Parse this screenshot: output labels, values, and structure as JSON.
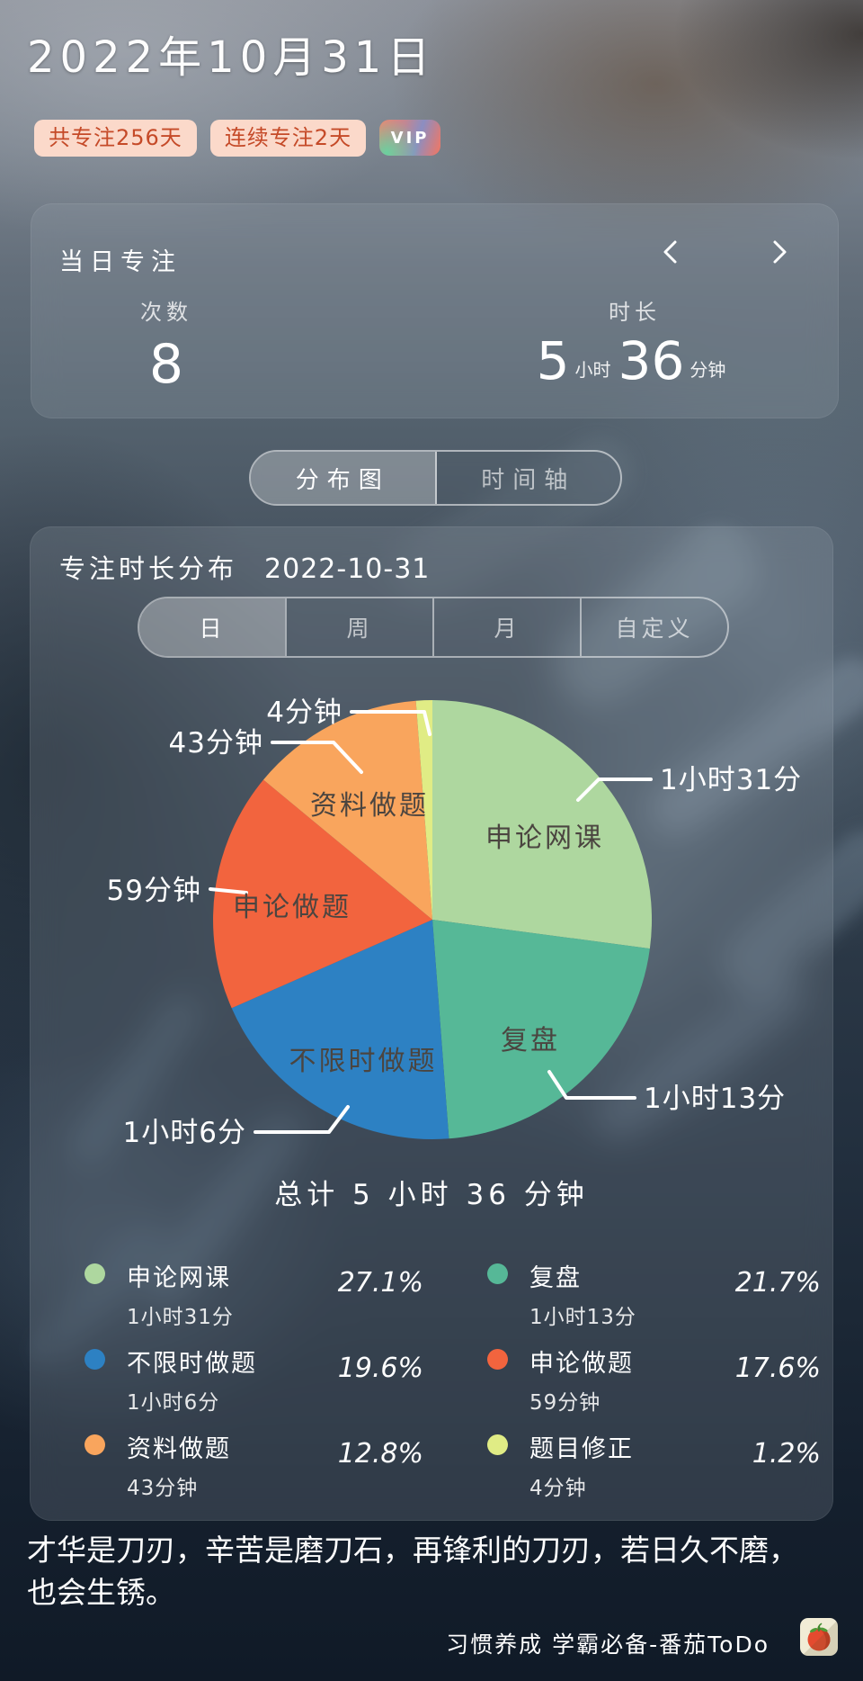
{
  "header": {
    "date_title": "2022年10月31日",
    "badges": [
      {
        "label": "共专注256天"
      },
      {
        "label": "连续专注2天"
      }
    ],
    "vip_label": "VIP"
  },
  "daily_card": {
    "title": "当日专注",
    "count_label": "次数",
    "count_value": "8",
    "duration_label": "时长",
    "duration_hours": "5",
    "hours_unit": "小时",
    "duration_minutes": "36",
    "minutes_unit": "分钟"
  },
  "view_tabs": [
    {
      "label": "分布图",
      "active": true
    },
    {
      "label": "时间轴",
      "active": false
    }
  ],
  "chart_card": {
    "title": "专注时长分布",
    "date": "2022-10-31",
    "range_tabs": [
      {
        "label": "日",
        "active": true
      },
      {
        "label": "周",
        "active": false
      },
      {
        "label": "月",
        "active": false
      },
      {
        "label": "自定义",
        "active": false
      }
    ],
    "total_label": "总计 5 小时 36 分钟"
  },
  "chart_data": {
    "type": "pie",
    "title": "专注时长分布",
    "subtitle": "2022-10-31",
    "start_angle_deg": 0,
    "direction": "clockwise",
    "total_minutes": 336,
    "total_label": "总计 5 小时 36 分钟",
    "legend_position": "bottom",
    "series": [
      {
        "name": "申论网课",
        "duration": "1小时31分",
        "minutes": 91,
        "percent": 27.1,
        "color": "#aed79f"
      },
      {
        "name": "复盘",
        "duration": "1小时13分",
        "minutes": 73,
        "percent": 21.7,
        "color": "#56b897"
      },
      {
        "name": "不限时做题",
        "duration": "1小时6分",
        "minutes": 66,
        "percent": 19.6,
        "color": "#2d81c3"
      },
      {
        "name": "申论做题",
        "duration": "59分钟",
        "minutes": 59,
        "percent": 17.6,
        "color": "#f2643e"
      },
      {
        "name": "资料做题",
        "duration": "43分钟",
        "minutes": 43,
        "percent": 12.8,
        "color": "#f9a55d"
      },
      {
        "name": "题目修正",
        "duration": "4分钟",
        "minutes": 4,
        "percent": 1.2,
        "color": "#e0ec85"
      }
    ]
  },
  "quote": "才华是刀刃，辛苦是磨刀石，再锋利的刀刃，若日久不磨，也会生锈。",
  "footer": {
    "slogan": "习惯养成 学霸必备-番茄ToDo"
  }
}
